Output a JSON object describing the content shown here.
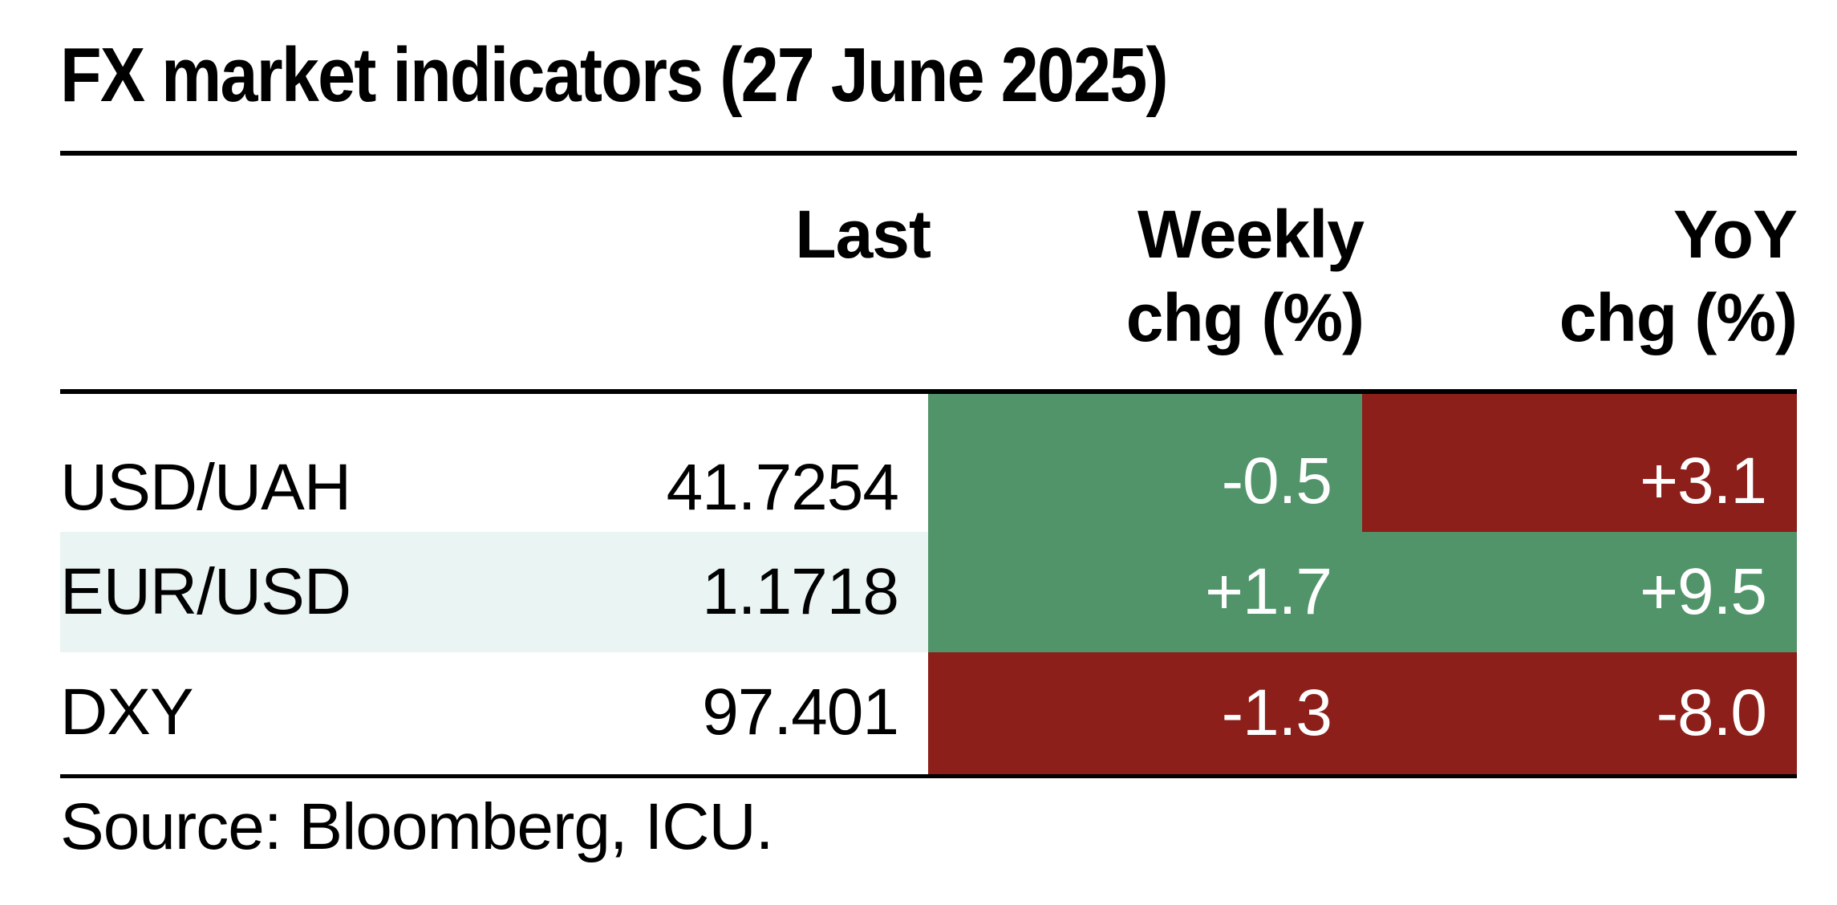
{
  "title": "FX market indicators (27 June 2025)",
  "columns": {
    "last": "Last",
    "weekly": [
      "Weekly",
      "chg (%)"
    ],
    "yoy": [
      "YoY",
      "chg (%)"
    ]
  },
  "rows": [
    {
      "name": "USD/UAH",
      "last": "41.7254",
      "weekly": "-0.5",
      "yoy": "+3.1",
      "weekly_color": "#52946a",
      "yoy_color": "#8c1f19"
    },
    {
      "name": "EUR/USD",
      "last": "1.1718",
      "weekly": "+1.7",
      "yoy": "+9.5",
      "weekly_color": "#52946a",
      "yoy_color": "#52946a"
    },
    {
      "name": "DXY",
      "last": "97.401",
      "weekly": "-1.3",
      "yoy": "-8.0",
      "weekly_color": "#8c1f19",
      "yoy_color": "#8c1f19"
    }
  ],
  "source": "Source: Bloomberg, ICU.",
  "colors": {
    "positive_fill": "#52946a",
    "negative_fill": "#8c1f19",
    "striped_row": "#eaf4f2"
  }
}
